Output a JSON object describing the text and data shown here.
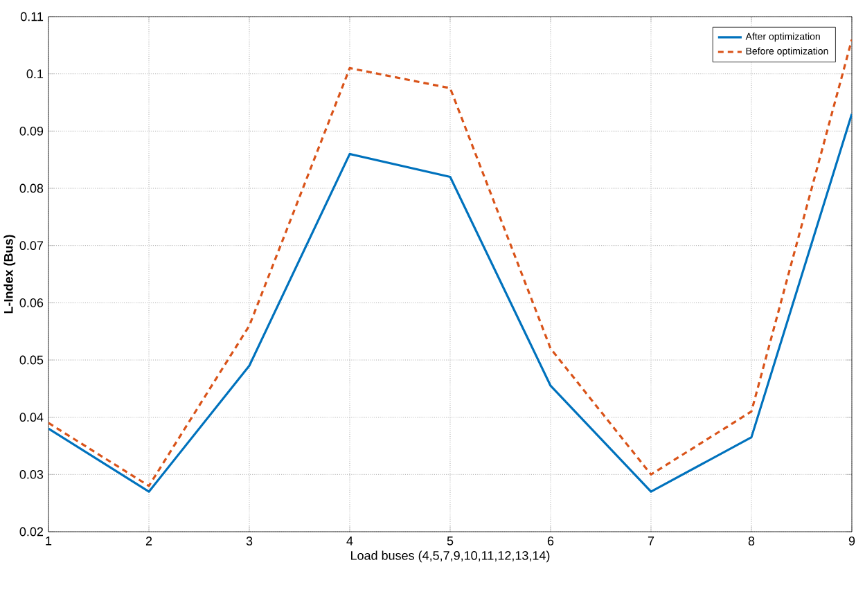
{
  "chart_data": {
    "type": "line",
    "xlabel": "Load buses (4,5,7,9,10,11,12,13,14)",
    "ylabel": "L-Index (Bus)",
    "x": [
      1,
      2,
      3,
      4,
      5,
      6,
      7,
      8,
      9
    ],
    "series": [
      {
        "name": "After optimization",
        "color": "#0072bd",
        "line_style": "solid",
        "values": [
          0.038,
          0.027,
          0.049,
          0.086,
          0.082,
          0.0455,
          0.027,
          0.0365,
          0.093
        ]
      },
      {
        "name": "Before optimization",
        "color": "#d95319",
        "line_style": "dashed",
        "values": [
          0.039,
          0.028,
          0.056,
          0.101,
          0.0975,
          0.052,
          0.03,
          0.041,
          0.106
        ]
      }
    ],
    "xlim": [
      1,
      9
    ],
    "ylim": [
      0.02,
      0.11
    ],
    "xticks": [
      1,
      2,
      3,
      4,
      5,
      6,
      7,
      8,
      9
    ],
    "yticks": [
      0.02,
      0.03,
      0.04,
      0.05,
      0.06,
      0.07,
      0.08,
      0.09,
      0.1,
      0.11
    ],
    "grid": true,
    "legend": "top right"
  }
}
